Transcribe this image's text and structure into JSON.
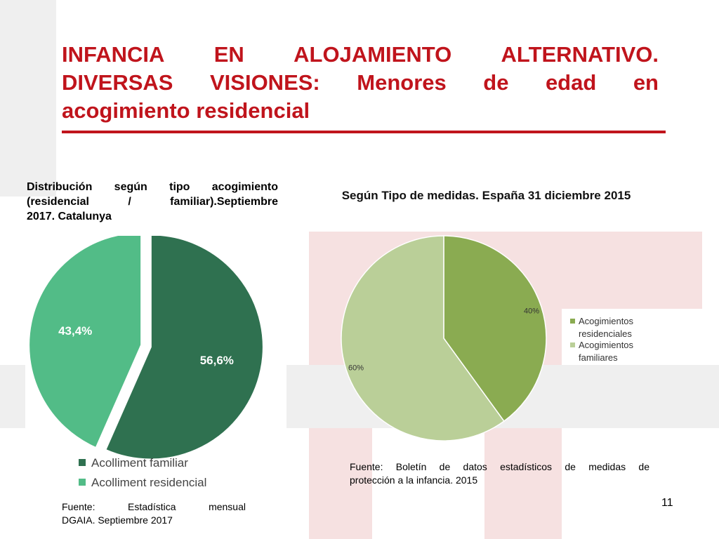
{
  "slide": {
    "title_lines": [
      "INFANCIA EN ALOJAMIENTO ALTERNATIVO.",
      "DIVERSAS VISIONES: Menores de edad en",
      "acogimiento residencial"
    ],
    "page_number": "11",
    "accent_color": "#c0141c"
  },
  "left": {
    "caption_lines": [
      "Distribución según tipo acogimiento",
      "(residencial / familiar).Septiembre",
      "2017. Catalunya"
    ],
    "source_lines": [
      "Fuente: Estadística mensual",
      "DGAIA. Septiembre 2017"
    ]
  },
  "right": {
    "source_lines": [
      "Fuente: Boletín de datos estadísticos de medidas de",
      "protección a la infancia. 2015"
    ]
  },
  "chart_data": [
    {
      "type": "pie",
      "title": "",
      "slices": [
        {
          "name": "Acolliment familiar",
          "value": 56.6,
          "label": "56,6%",
          "color": "#2f7150"
        },
        {
          "name": "Acolliment residencial",
          "value": 43.4,
          "label": "43,4%",
          "color": "#52bc87"
        }
      ],
      "legend_position": "bottom"
    },
    {
      "type": "pie",
      "title": "Según Tipo de medidas. España 31 diciembre 2015",
      "slices": [
        {
          "name": "Acogimientos residenciales",
          "value": 40,
          "label": "40%",
          "color": "#8aab51"
        },
        {
          "name": "Acogimientos familiares",
          "value": 60,
          "label": "60%",
          "color": "#bacf98"
        }
      ],
      "legend_position": "right"
    }
  ]
}
